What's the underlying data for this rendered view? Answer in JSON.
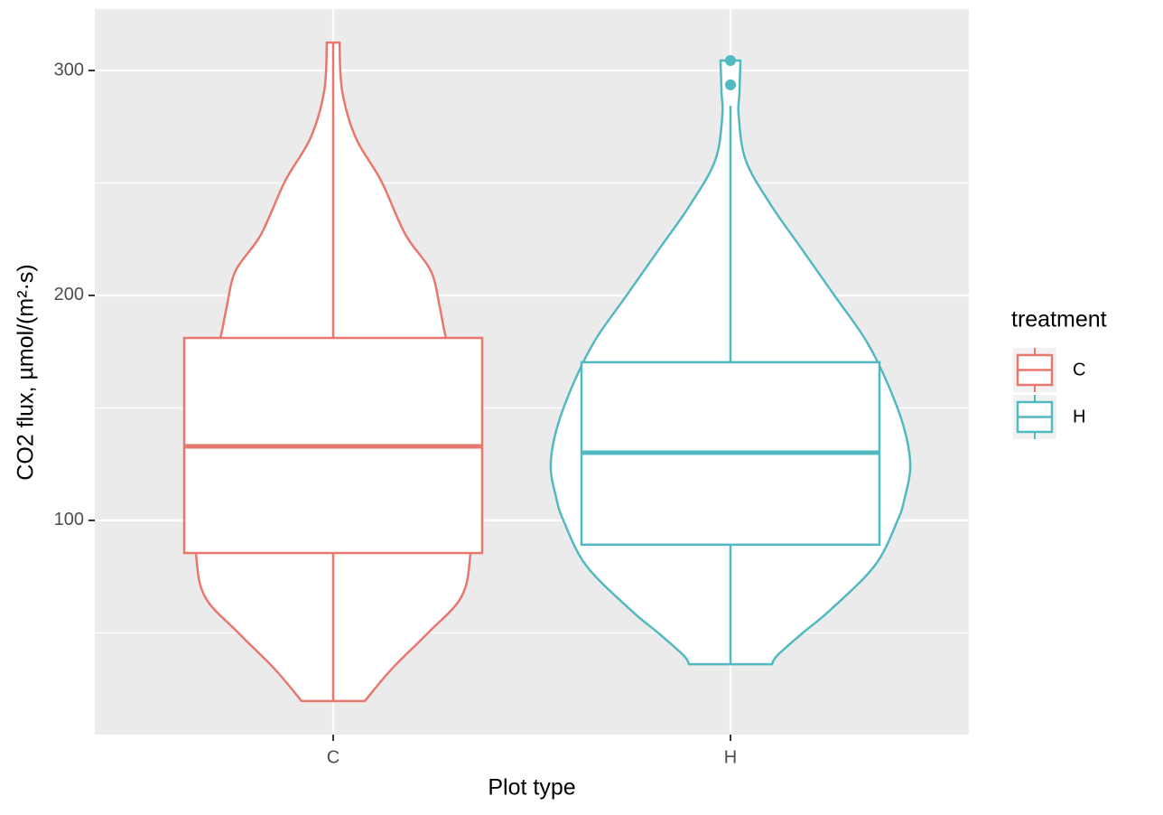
{
  "chart_data": {
    "type": "violin",
    "x_label": "Plot type",
    "y_label": "CO2 flux, µmol/(m²·s)",
    "categories": [
      "C",
      "H"
    ],
    "ylim": [
      4.8,
      327.3
    ],
    "yticks": [
      100,
      200,
      300
    ],
    "minor_yticks": [
      50,
      150,
      250
    ],
    "grid": true,
    "legend_title": "treatment",
    "legend_position": "right",
    "series": [
      {
        "name": "C",
        "color": "#e8776d",
        "box": {
          "whisker_low": 19.7,
          "q1": 85.5,
          "median": 132.9,
          "q3": 181.1,
          "whisker_high": 312.4
        },
        "outliers": [],
        "violin": {
          "y": [
            312.4,
            291,
            270,
            251,
            227,
            211,
            195,
            181,
            150,
            120,
            85.5,
            66,
            50,
            34,
            19.7
          ],
          "width": [
            0.032,
            0.045,
            0.114,
            0.241,
            0.364,
            0.491,
            0.536,
            0.568,
            0.659,
            0.705,
            0.691,
            0.645,
            0.477,
            0.295,
            0.159
          ]
        }
      },
      {
        "name": "H",
        "color": "#51b9c0",
        "box": {
          "whisker_low": 36.1,
          "q1": 89.2,
          "median": 130.1,
          "q3": 170.3,
          "whisker_high": 284.3
        },
        "outliers": [
          304.4,
          293.6
        ],
        "violin": {
          "y": [
            304.4,
            290,
            280,
            260,
            240,
            220,
            200,
            180,
            160,
            140,
            124,
            110,
            100,
            80,
            60,
            50,
            40,
            36.1
          ],
          "width": [
            0.05,
            0.045,
            0.041,
            0.077,
            0.205,
            0.364,
            0.523,
            0.682,
            0.795,
            0.877,
            0.905,
            0.877,
            0.841,
            0.727,
            0.5,
            0.364,
            0.236,
            0.209
          ]
        }
      }
    ]
  }
}
